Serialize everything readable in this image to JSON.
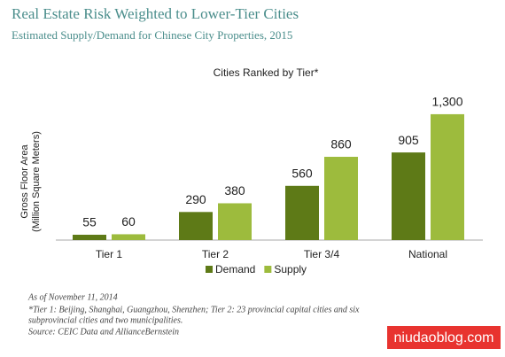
{
  "chart_data": {
    "type": "bar",
    "title": "Real Estate Risk Weighted to Lower-Tier Cities",
    "subtitle": "Estimated Supply/Demand for Chinese City Properties, 2015",
    "chart_heading": "Cities Ranked by Tier*",
    "y_label": [
      "Gross Floor Area",
      "(Million Square Meters)"
    ],
    "categories": [
      "Tier 1",
      "Tier 2",
      "Tier 3/4",
      "National"
    ],
    "series": [
      {
        "name": "Demand",
        "color": "#5e7a17",
        "values": [
          55,
          290,
          560,
          905
        ]
      },
      {
        "name": "Supply",
        "color": "#9dbb3d",
        "values": [
          60,
          380,
          860,
          1300
        ],
        "value_labels": [
          "60",
          "380",
          "860",
          "1,300"
        ]
      }
    ],
    "ylim": [
      0,
      1400
    ],
    "legend": "bottom",
    "footnotes": [
      "As of November 11, 2014",
      "*Tier 1: Beijing, Shanghai, Guangzhou, Shenzhen; Tier 2: 23 provincial capital cities and six",
      "subprovincial cities and two municipalities.",
      "Source: CEIC Data and AllianceBernstein"
    ],
    "watermark": "niudaoblog.com"
  }
}
